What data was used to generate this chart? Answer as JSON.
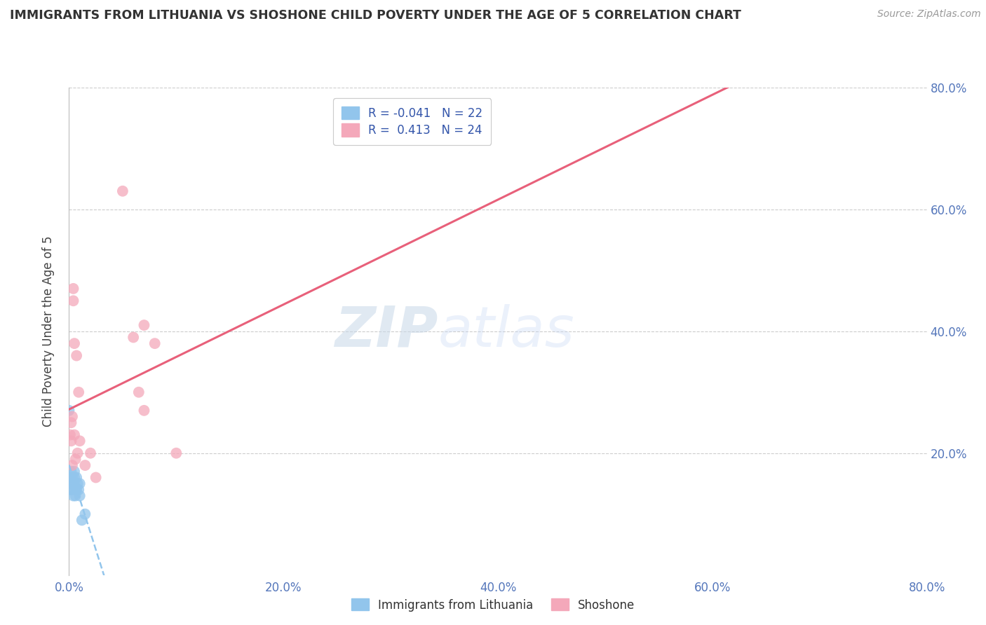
{
  "title": "IMMIGRANTS FROM LITHUANIA VS SHOSHONE CHILD POVERTY UNDER THE AGE OF 5 CORRELATION CHART",
  "source": "Source: ZipAtlas.com",
  "ylabel": "Child Poverty Under the Age of 5",
  "xlim": [
    0.0,
    0.8
  ],
  "ylim": [
    0.0,
    0.8
  ],
  "xtick_labels": [
    "0.0%",
    "20.0%",
    "40.0%",
    "60.0%",
    "80.0%"
  ],
  "xtick_vals": [
    0.0,
    0.2,
    0.4,
    0.6,
    0.8
  ],
  "ytick_vals": [
    0.2,
    0.4,
    0.6,
    0.8
  ],
  "right_ytick_labels": [
    "20.0%",
    "40.0%",
    "60.0%",
    "80.0%"
  ],
  "right_ytick_vals": [
    0.2,
    0.4,
    0.6,
    0.8
  ],
  "r_blue": -0.041,
  "n_blue": 22,
  "r_pink": 0.413,
  "n_pink": 24,
  "blue_color": "#92C5EC",
  "pink_color": "#F4A8BA",
  "blue_line_color": "#92C5EC",
  "pink_line_color": "#E8607A",
  "watermark_zip": "ZIP",
  "watermark_atlas": "atlas",
  "blue_points_x": [
    0.0,
    0.001,
    0.001,
    0.002,
    0.002,
    0.003,
    0.003,
    0.004,
    0.004,
    0.005,
    0.005,
    0.005,
    0.006,
    0.006,
    0.007,
    0.007,
    0.008,
    0.009,
    0.01,
    0.01,
    0.012,
    0.015
  ],
  "blue_points_y": [
    0.27,
    0.14,
    0.16,
    0.15,
    0.17,
    0.14,
    0.16,
    0.13,
    0.15,
    0.17,
    0.15,
    0.16,
    0.14,
    0.13,
    0.16,
    0.14,
    0.15,
    0.14,
    0.13,
    0.15,
    0.09,
    0.1
  ],
  "pink_points_x": [
    0.001,
    0.002,
    0.002,
    0.003,
    0.003,
    0.004,
    0.004,
    0.005,
    0.005,
    0.006,
    0.007,
    0.008,
    0.009,
    0.01,
    0.015,
    0.02,
    0.025,
    0.05,
    0.06,
    0.065,
    0.07,
    0.07,
    0.08,
    0.1
  ],
  "pink_points_y": [
    0.23,
    0.22,
    0.25,
    0.18,
    0.26,
    0.45,
    0.47,
    0.38,
    0.23,
    0.19,
    0.36,
    0.2,
    0.3,
    0.22,
    0.18,
    0.2,
    0.16,
    0.63,
    0.39,
    0.3,
    0.27,
    0.41,
    0.38,
    0.2
  ]
}
